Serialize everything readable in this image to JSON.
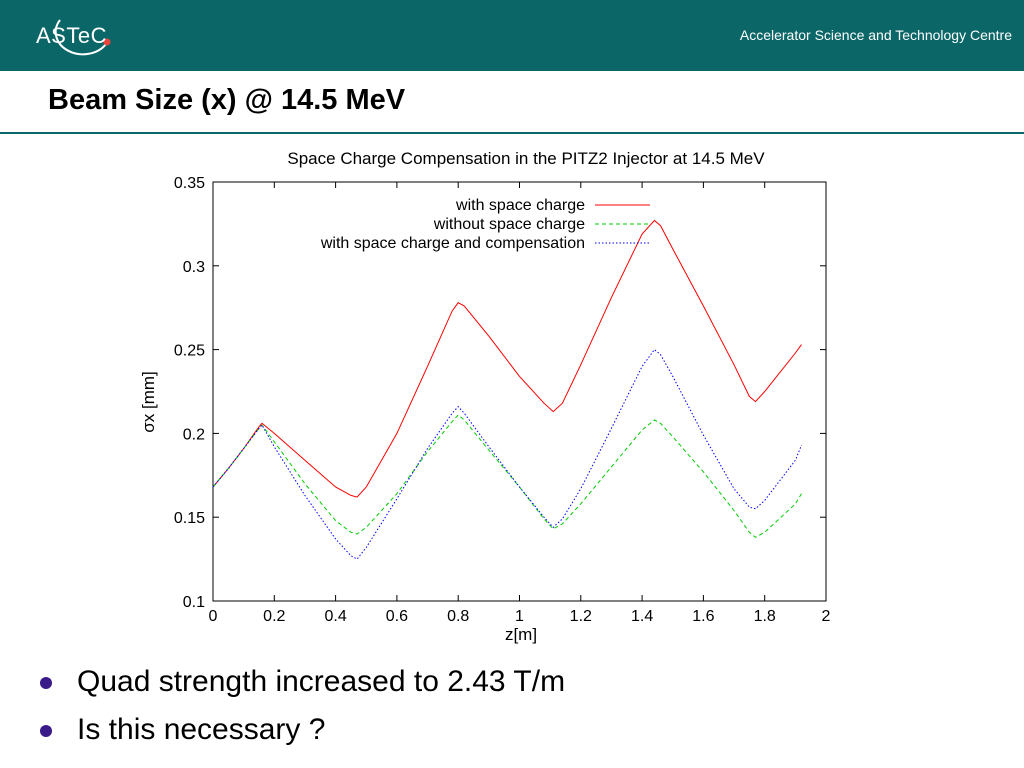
{
  "header": {
    "logo_text": "ASTeC",
    "tagline": "Accelerator Science and Technology Centre",
    "brand_color": "#0b6668"
  },
  "slide": {
    "title": "Beam Size (x) @ 14.5 MeV",
    "bullets": [
      "Quad strength increased to 2.43 T/m",
      "Is this necessary ?"
    ]
  },
  "chart_data": {
    "type": "line",
    "title": "Space Charge Compensation in the PITZ2 Injector at 14.5 MeV",
    "xlabel": "z[m]",
    "ylabel": "σx [mm]",
    "xlim": [
      0,
      2
    ],
    "ylim": [
      0.1,
      0.35
    ],
    "xticks": [
      "0",
      "0.2",
      "0.4",
      "0.6",
      "0.8",
      "1",
      "1.2",
      "1.4",
      "1.6",
      "1.8",
      "2"
    ],
    "yticks": [
      "0.1",
      "0.15",
      "0.2",
      "0.25",
      "0.3",
      "0.35"
    ],
    "legend_position": "top-left",
    "grid": false,
    "series": [
      {
        "name": "with space charge",
        "color": "#ff0000",
        "style": "solid",
        "x": [
          0,
          0.05,
          0.1,
          0.15,
          0.16,
          0.2,
          0.3,
          0.4,
          0.45,
          0.47,
          0.5,
          0.6,
          0.7,
          0.78,
          0.8,
          0.82,
          0.9,
          1.0,
          1.08,
          1.11,
          1.14,
          1.2,
          1.3,
          1.4,
          1.44,
          1.46,
          1.5,
          1.6,
          1.7,
          1.75,
          1.77,
          1.8,
          1.9,
          1.92
        ],
        "y": [
          0.168,
          0.179,
          0.191,
          0.204,
          0.206,
          0.2,
          0.184,
          0.168,
          0.163,
          0.162,
          0.168,
          0.2,
          0.24,
          0.273,
          0.278,
          0.276,
          0.258,
          0.234,
          0.218,
          0.213,
          0.218,
          0.241,
          0.281,
          0.319,
          0.327,
          0.324,
          0.31,
          0.276,
          0.241,
          0.222,
          0.219,
          0.225,
          0.248,
          0.253
        ]
      },
      {
        "name": "without space charge",
        "color": "#00cc00",
        "style": "dashed",
        "x": [
          0,
          0.05,
          0.1,
          0.15,
          0.16,
          0.2,
          0.3,
          0.4,
          0.45,
          0.47,
          0.5,
          0.6,
          0.7,
          0.78,
          0.8,
          0.82,
          0.9,
          1.0,
          1.08,
          1.11,
          1.14,
          1.2,
          1.3,
          1.4,
          1.44,
          1.46,
          1.5,
          1.6,
          1.7,
          1.75,
          1.77,
          1.8,
          1.9,
          1.92
        ],
        "y": [
          0.168,
          0.179,
          0.191,
          0.203,
          0.205,
          0.195,
          0.17,
          0.148,
          0.141,
          0.14,
          0.144,
          0.164,
          0.189,
          0.207,
          0.211,
          0.208,
          0.19,
          0.168,
          0.149,
          0.143,
          0.146,
          0.158,
          0.18,
          0.202,
          0.208,
          0.206,
          0.198,
          0.177,
          0.154,
          0.141,
          0.138,
          0.141,
          0.158,
          0.164
        ]
      },
      {
        "name": "with space charge and compensation",
        "color": "#0000ff",
        "style": "dotted",
        "x": [
          0,
          0.05,
          0.1,
          0.15,
          0.16,
          0.2,
          0.3,
          0.4,
          0.45,
          0.47,
          0.5,
          0.6,
          0.7,
          0.78,
          0.8,
          0.82,
          0.9,
          1.0,
          1.08,
          1.11,
          1.14,
          1.2,
          1.3,
          1.4,
          1.44,
          1.46,
          1.5,
          1.6,
          1.7,
          1.75,
          1.77,
          1.8,
          1.9,
          1.92
        ],
        "y": [
          0.168,
          0.179,
          0.191,
          0.203,
          0.205,
          0.192,
          0.163,
          0.137,
          0.127,
          0.125,
          0.132,
          0.161,
          0.191,
          0.212,
          0.216,
          0.212,
          0.192,
          0.168,
          0.15,
          0.144,
          0.149,
          0.167,
          0.203,
          0.24,
          0.25,
          0.247,
          0.234,
          0.199,
          0.167,
          0.156,
          0.155,
          0.16,
          0.184,
          0.193
        ]
      }
    ]
  }
}
